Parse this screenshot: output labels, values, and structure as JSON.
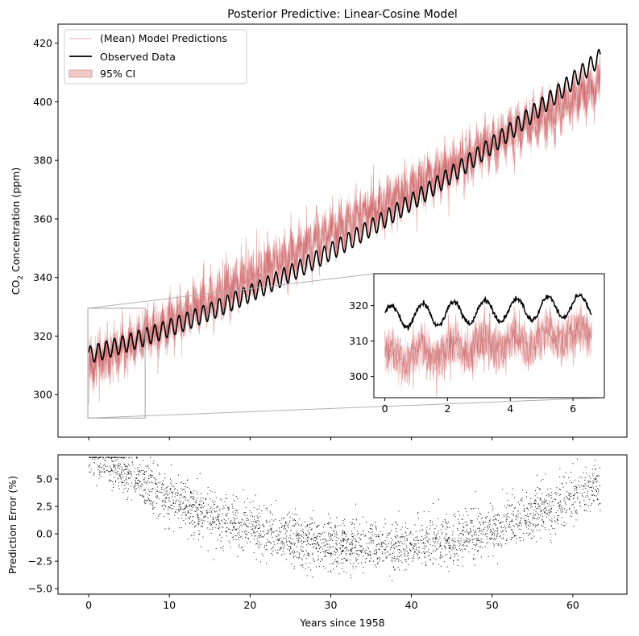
{
  "chart_data": [
    {
      "type": "line",
      "title": "Posterior Predictive: Linear-Cosine Model",
      "xlabel": "",
      "ylabel": "CO2 Concentration (ppm)",
      "ylabel_parts": {
        "pre": "CO",
        "sub": "2",
        "post": " Concentration (ppm)"
      },
      "xlim": [
        -3.8,
        66.7
      ],
      "ylim": [
        285.5,
        426.5
      ],
      "xticks": [
        0,
        10,
        20,
        30,
        40,
        50,
        60
      ],
      "yticks": [
        300,
        320,
        340,
        360,
        380,
        400,
        420
      ],
      "ytick_labels": [
        "300",
        "320",
        "340",
        "360",
        "380",
        "400",
        "420"
      ],
      "legend_position": "upper-left",
      "legend": [
        "(Mean) Model Predictions",
        "Observed Data",
        "95% CI"
      ],
      "observed_model": {
        "base": 313.5,
        "slope": 0.8,
        "curvature": 0.0127,
        "amplitude": 3.0,
        "phase_years": 0.05
      },
      "prediction_model": {
        "base": 309.5,
        "slope": 1.52,
        "amplitude": 2.5,
        "noise": 6.0,
        "ci_half_width": 3.0
      },
      "x_range": [
        0,
        63.4
      ],
      "zoom_box": {
        "xlim": [
          -0.1,
          7.0
        ],
        "ylim": [
          292,
          329.5
        ]
      },
      "grid": false,
      "colors": {
        "observed": "#000000",
        "prediction": "#c44e52",
        "ci": "#eebbbb",
        "inset_connector": "#b0b0b0"
      }
    },
    {
      "type": "line",
      "title": "",
      "inset_of": "main",
      "xlim": [
        -0.35,
        7.0
      ],
      "ylim": [
        294,
        329
      ],
      "xticks": [
        0,
        2,
        4,
        6
      ],
      "yticks": [
        300,
        310,
        320
      ],
      "x_range": [
        0,
        6.6
      ],
      "observed_model": {
        "base": 316.8,
        "slope": 0.5,
        "amplitude": 3.2
      },
      "prediction_model": {
        "base": 305.0,
        "slope": 1.1,
        "amplitude": 2.0,
        "noise": 5.0
      }
    },
    {
      "type": "scatter",
      "title": "",
      "xlabel": "Years since 1958",
      "ylabel": "Prediction Error (%)",
      "xlim": [
        -3.8,
        66.7
      ],
      "ylim": [
        -5.5,
        7.2
      ],
      "xticks": [
        0,
        10,
        20,
        30,
        40,
        50,
        60
      ],
      "yticks": [
        -5.0,
        -2.5,
        0.0,
        2.5,
        5.0
      ],
      "ytick_labels": [
        "−5.0",
        "−2.5",
        "0.0",
        "2.5",
        "5.0"
      ],
      "error_model": {
        "center_year": 35,
        "curvature": 0.0072,
        "offset": -1.15,
        "noise_sd": 1.15,
        "n_points": 3000
      },
      "x_range": [
        0,
        63.4
      ],
      "grid": false,
      "colors": {
        "points": "#000000"
      }
    }
  ]
}
